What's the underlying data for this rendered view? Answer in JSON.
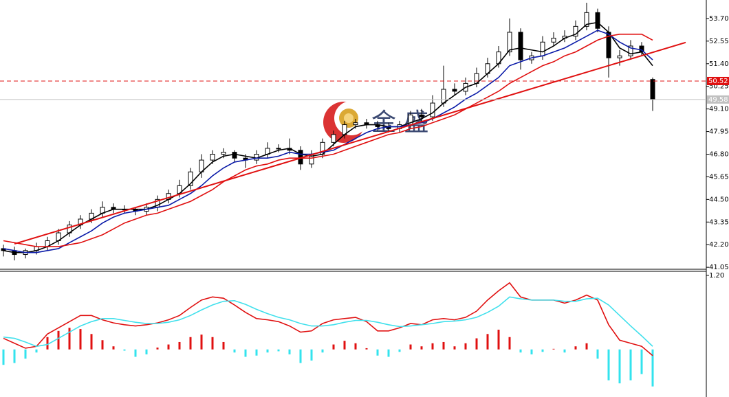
{
  "chart_data": [
    {
      "type": "candlestick",
      "ylim": [
        40.95,
        54.64
      ],
      "yticks": [
        {
          "value": 41.05,
          "label": "41.05"
        },
        {
          "value": 42.2,
          "label": "42.20"
        },
        {
          "value": 43.35,
          "label": "43.35"
        },
        {
          "value": 44.5,
          "label": "44.50"
        },
        {
          "value": 45.65,
          "label": "45.65"
        },
        {
          "value": 46.8,
          "label": "46.80"
        },
        {
          "value": 47.95,
          "label": "47.95"
        },
        {
          "value": 49.1,
          "label": "49.10"
        },
        {
          "value": 50.25,
          "label": "50.25"
        },
        {
          "value": 51.4,
          "label": "51.40"
        },
        {
          "value": 52.55,
          "label": "52.55"
        },
        {
          "value": 53.7,
          "label": "53.70"
        }
      ],
      "open": [
        42.0,
        41.9,
        41.7,
        41.9,
        42.1,
        42.4,
        42.8,
        43.2,
        43.5,
        43.8,
        44.1,
        44.0,
        44.0,
        43.9,
        44.1,
        44.5,
        44.8,
        45.2,
        45.9,
        46.5,
        46.8,
        46.9,
        46.6,
        46.5,
        46.8,
        47.1,
        47.1,
        47.0,
        46.3,
        46.8,
        47.4,
        47.8,
        48.3,
        48.4,
        48.3,
        48.2,
        48.1,
        48.3,
        48.8,
        48.7,
        49.4,
        50.1,
        50.0,
        50.4,
        50.9,
        51.4,
        52.0,
        53.0,
        51.6,
        51.8,
        52.5,
        52.7,
        52.8,
        53.3,
        54.0,
        53.0,
        51.7,
        51.8,
        52.3,
        50.6
      ],
      "high": [
        42.2,
        42.1,
        42.0,
        42.3,
        42.6,
        43.0,
        43.4,
        43.7,
        44.0,
        44.4,
        44.3,
        44.2,
        44.1,
        44.3,
        44.7,
        45.0,
        45.5,
        46.1,
        46.8,
        47.0,
        47.1,
        47.0,
        46.8,
        47.0,
        47.4,
        47.3,
        47.6,
        47.2,
        47.0,
        47.6,
        48.0,
        48.5,
        48.6,
        48.6,
        48.5,
        48.4,
        48.5,
        49.0,
        49.1,
        49.8,
        51.3,
        50.4,
        50.7,
        51.2,
        51.7,
        52.3,
        53.7,
        53.2,
        52.0,
        52.8,
        53.0,
        53.1,
        53.6,
        54.5,
        54.2,
        53.3,
        52.1,
        52.6,
        52.5,
        50.7
      ],
      "low": [
        41.6,
        41.4,
        41.5,
        41.7,
        41.9,
        42.2,
        42.6,
        43.0,
        43.3,
        43.6,
        43.8,
        43.8,
        43.7,
        43.7,
        43.9,
        44.3,
        44.6,
        45.0,
        45.6,
        46.3,
        46.6,
        46.4,
        46.1,
        46.3,
        46.6,
        46.9,
        46.8,
        46.0,
        46.1,
        46.6,
        47.2,
        47.6,
        48.1,
        48.1,
        48.0,
        47.9,
        47.9,
        48.1,
        48.4,
        48.5,
        49.2,
        49.8,
        49.8,
        50.2,
        50.7,
        51.2,
        51.8,
        51.1,
        51.4,
        51.6,
        52.3,
        52.5,
        52.6,
        53.1,
        53.0,
        50.7,
        51.3,
        51.6,
        51.8,
        49.0
      ],
      "close": [
        41.9,
        41.7,
        41.9,
        42.1,
        42.4,
        42.8,
        43.2,
        43.5,
        43.8,
        44.1,
        44.0,
        44.0,
        43.9,
        44.1,
        44.5,
        44.8,
        45.2,
        45.9,
        46.5,
        46.8,
        46.9,
        46.6,
        46.5,
        46.8,
        47.1,
        47.1,
        47.0,
        46.3,
        46.8,
        47.4,
        47.8,
        48.3,
        48.4,
        48.3,
        48.2,
        48.1,
        48.3,
        48.8,
        48.7,
        49.4,
        50.1,
        50.0,
        50.4,
        50.9,
        51.4,
        52.0,
        53.0,
        51.6,
        51.8,
        52.5,
        52.7,
        52.8,
        53.3,
        54.0,
        53.2,
        51.7,
        51.8,
        52.3,
        52.0,
        49.6
      ],
      "up_color": "#ffffff",
      "down_color": "#000000",
      "ma_lines": [
        {
          "color": "#000000",
          "values": [
            41.9,
            41.8,
            41.8,
            41.9,
            42.1,
            42.4,
            42.8,
            43.2,
            43.5,
            43.8,
            44.0,
            44.0,
            44.0,
            44.0,
            44.2,
            44.5,
            44.8,
            45.3,
            45.9,
            46.4,
            46.7,
            46.8,
            46.7,
            46.6,
            46.8,
            47.0,
            47.1,
            46.8,
            46.7,
            46.8,
            47.3,
            47.8,
            48.2,
            48.3,
            48.3,
            48.2,
            48.2,
            48.4,
            48.6,
            48.9,
            49.4,
            49.8,
            50.2,
            50.4,
            50.9,
            51.4,
            52.1,
            52.2,
            52.1,
            52.0,
            52.3,
            52.7,
            52.9,
            53.4,
            53.5,
            53.0,
            52.2,
            51.9,
            52.0,
            51.3
          ]
        },
        {
          "color": "#0a1aa8",
          "values": [
            42.0,
            41.9,
            41.8,
            41.8,
            41.9,
            42.0,
            42.3,
            42.6,
            42.9,
            43.3,
            43.6,
            43.8,
            43.9,
            44.0,
            44.1,
            44.2,
            44.5,
            44.8,
            45.2,
            45.7,
            46.1,
            46.4,
            46.5,
            46.6,
            46.6,
            46.7,
            46.9,
            46.8,
            46.8,
            46.9,
            47.0,
            47.3,
            47.6,
            47.9,
            48.1,
            48.2,
            48.2,
            48.3,
            48.4,
            48.6,
            48.9,
            49.2,
            49.6,
            49.9,
            50.3,
            50.7,
            51.3,
            51.5,
            51.7,
            51.8,
            52.0,
            52.2,
            52.5,
            52.8,
            53.1,
            52.9,
            52.5,
            52.2,
            52.1,
            51.6
          ]
        },
        {
          "color": "#e01010",
          "values": [
            42.4,
            42.3,
            42.2,
            42.1,
            42.1,
            42.1,
            42.2,
            42.3,
            42.5,
            42.7,
            43.0,
            43.3,
            43.5,
            43.7,
            43.8,
            44.0,
            44.2,
            44.4,
            44.7,
            45.0,
            45.4,
            45.7,
            46.0,
            46.2,
            46.3,
            46.5,
            46.6,
            46.6,
            46.6,
            46.7,
            46.8,
            47.0,
            47.2,
            47.4,
            47.6,
            47.8,
            47.9,
            48.1,
            48.2,
            48.4,
            48.6,
            48.8,
            49.1,
            49.4,
            49.7,
            50.0,
            50.4,
            50.7,
            51.0,
            51.3,
            51.5,
            51.8,
            52.0,
            52.3,
            52.6,
            52.8,
            52.9,
            52.9,
            52.9,
            52.6
          ]
        }
      ],
      "trendline": {
        "color": "#e01010",
        "x": [
          1,
          62
        ],
        "values": [
          42.24,
          52.48
        ]
      },
      "hlines": [
        {
          "value": 50.52,
          "color": "#e01010",
          "style": "dashed"
        },
        {
          "value": 49.58,
          "color": "#c0c0c0",
          "style": "solid"
        }
      ],
      "watermark": "金 盛"
    },
    {
      "type": "macd",
      "ylim": [
        -0.771,
        1.266
      ],
      "yticks": [
        {
          "value": 1.2,
          "label": "1.20"
        }
      ],
      "histogram": {
        "up_color": "#e01010",
        "down_color": "#33e3ee",
        "values": [
          -0.25,
          -0.22,
          -0.15,
          -0.05,
          0.2,
          0.3,
          0.35,
          0.33,
          0.25,
          0.15,
          0.05,
          -0.02,
          -0.12,
          -0.08,
          0.03,
          0.08,
          0.12,
          0.2,
          0.24,
          0.2,
          0.12,
          -0.05,
          -0.12,
          -0.1,
          -0.05,
          -0.03,
          -0.08,
          -0.22,
          -0.18,
          -0.05,
          0.08,
          0.14,
          0.1,
          0.02,
          -0.1,
          -0.12,
          -0.04,
          0.08,
          0.05,
          0.1,
          0.12,
          0.05,
          0.1,
          0.18,
          0.25,
          0.32,
          0.2,
          -0.05,
          -0.08,
          -0.04,
          0.01,
          -0.05,
          0.05,
          0.1,
          -0.15,
          -0.5,
          -0.55,
          -0.5,
          -0.4,
          -0.6
        ]
      },
      "lines": [
        {
          "color": "#e01010",
          "values": [
            0.18,
            0.1,
            0.02,
            0.05,
            0.25,
            0.35,
            0.45,
            0.55,
            0.55,
            0.48,
            0.43,
            0.4,
            0.38,
            0.4,
            0.43,
            0.48,
            0.55,
            0.68,
            0.8,
            0.85,
            0.83,
            0.72,
            0.6,
            0.5,
            0.48,
            0.45,
            0.38,
            0.28,
            0.3,
            0.42,
            0.48,
            0.5,
            0.52,
            0.45,
            0.3,
            0.3,
            0.35,
            0.42,
            0.4,
            0.48,
            0.5,
            0.48,
            0.52,
            0.62,
            0.8,
            0.95,
            1.08,
            0.85,
            0.8,
            0.8,
            0.8,
            0.75,
            0.8,
            0.88,
            0.8,
            0.4,
            0.15,
            0.1,
            0.05,
            -0.1
          ]
        },
        {
          "color": "#40e0ec",
          "values": [
            0.2,
            0.18,
            0.12,
            0.05,
            0.08,
            0.18,
            0.28,
            0.38,
            0.45,
            0.5,
            0.5,
            0.47,
            0.44,
            0.42,
            0.42,
            0.44,
            0.48,
            0.55,
            0.64,
            0.72,
            0.78,
            0.79,
            0.73,
            0.65,
            0.58,
            0.52,
            0.48,
            0.42,
            0.38,
            0.38,
            0.4,
            0.44,
            0.47,
            0.47,
            0.44,
            0.4,
            0.37,
            0.38,
            0.4,
            0.42,
            0.45,
            0.46,
            0.48,
            0.52,
            0.6,
            0.7,
            0.85,
            0.82,
            0.8,
            0.8,
            0.8,
            0.78,
            0.78,
            0.82,
            0.83,
            0.72,
            0.55,
            0.38,
            0.22,
            0.05
          ]
        }
      ]
    }
  ]
}
